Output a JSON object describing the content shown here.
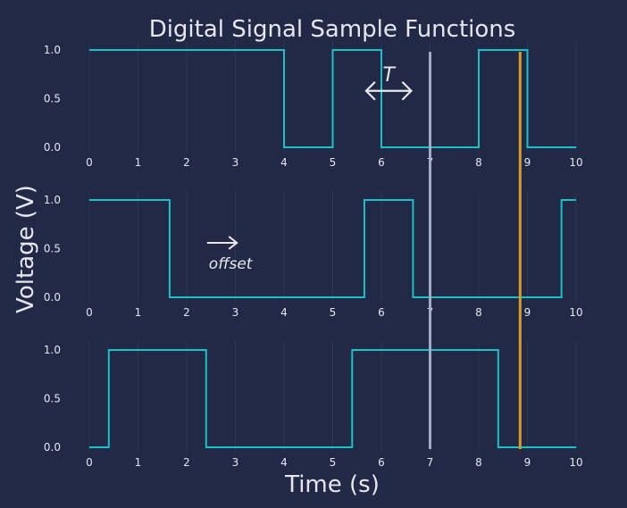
{
  "chart_data": {
    "type": "line",
    "title": "Digital Signal Sample Functions",
    "xlabel": "Time (s)",
    "ylabel": "Voltage (V)",
    "xlim": [
      0,
      10
    ],
    "ylim": [
      0,
      1
    ],
    "x_ticks": [
      "0",
      "1",
      "2",
      "3",
      "4",
      "5",
      "6",
      "7",
      "8",
      "9",
      "10"
    ],
    "y_ticks": [
      "0.0",
      "0.5",
      "1.0"
    ],
    "grid": true,
    "colors": {
      "background": "#212946",
      "signal": "#19c2c6",
      "grid": "#2c3656",
      "tick_text": "#e6e6f0",
      "vline_light": "#a5a8c8",
      "vline_gold": "#d79d28",
      "annotation": "#e8e8ee"
    },
    "vertical_lines": [
      {
        "x": 7.0,
        "color": "#a5a8c8"
      },
      {
        "x": 8.85,
        "color": "#d79d28"
      }
    ],
    "series": [
      {
        "x": [
          0,
          4,
          4,
          5,
          5,
          6,
          6,
          8,
          8,
          9,
          9,
          10
        ],
        "y": [
          1,
          1,
          0,
          0,
          1,
          1,
          0,
          0,
          1,
          1,
          0,
          0
        ]
      },
      {
        "x": [
          0,
          1.65,
          1.65,
          5.65,
          5.65,
          6.65,
          6.65,
          9.7,
          9.7,
          10
        ],
        "y": [
          1,
          1,
          0,
          0,
          1,
          1,
          0,
          0,
          1,
          1
        ]
      },
      {
        "x": [
          0,
          0.4,
          0.4,
          2.4,
          2.4,
          5.4,
          5.4,
          8.4,
          8.4,
          10
        ],
        "y": [
          0,
          0,
          1,
          1,
          0,
          0,
          1,
          1,
          0,
          0
        ]
      }
    ],
    "annotations": [
      {
        "text": "T",
        "panel": 1,
        "x_from": 5.65,
        "x_to": 6.65,
        "y": 0.58
      },
      {
        "text": "offset",
        "panel": 2,
        "x_from": 2.4,
        "x_to": 3.05,
        "y": 0.56
      }
    ]
  }
}
